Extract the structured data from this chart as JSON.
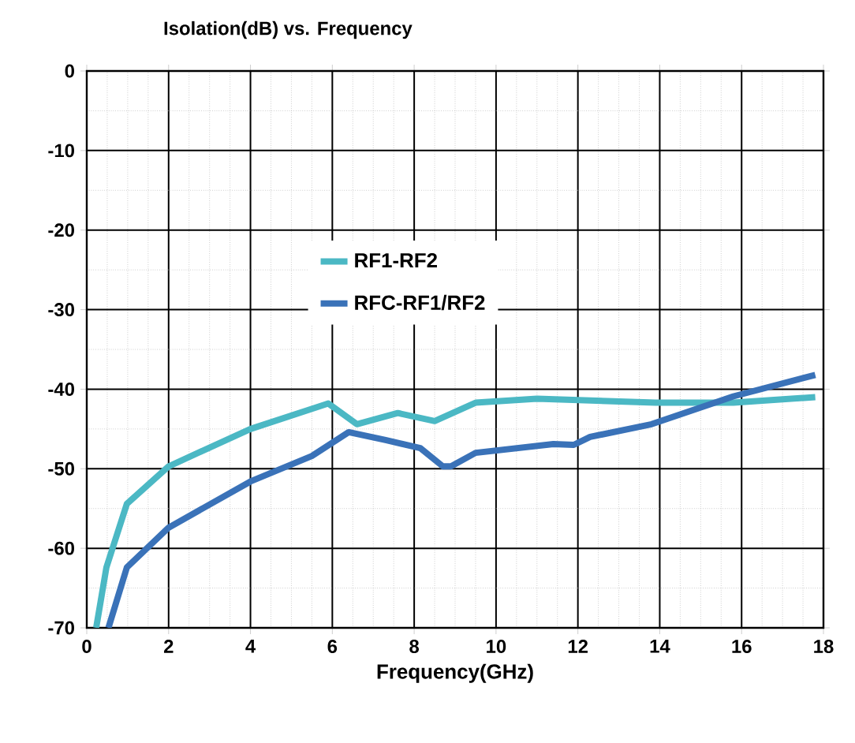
{
  "chart_data": {
    "type": "line",
    "title": "Isolation(dB)  vs. Frequency",
    "xlabel": "Frequency(GHz)",
    "xlim": [
      0,
      18
    ],
    "xticks": [
      0,
      2,
      4,
      6,
      8,
      10,
      12,
      14,
      16,
      18
    ],
    "ylim": [
      -70,
      0
    ],
    "yticks": [
      -70,
      -60,
      -50,
      -40,
      -30,
      -20,
      -10,
      0
    ],
    "grid": true,
    "legend": "center",
    "marker": "none",
    "line_style": "solid",
    "series": [
      {
        "name": "RF1-RF2",
        "color": "#4bb8c4",
        "x": [
          0.23,
          0.48,
          0.98,
          2.0,
          4.0,
          5.9,
          6.6,
          7.6,
          8.5,
          9.5,
          11.0,
          13.9,
          15.8,
          17.8
        ],
        "values": [
          -70,
          -62.4,
          -54.4,
          -49.7,
          -45,
          -41.8,
          -44.4,
          -43,
          -44,
          -41.7,
          -41.2,
          -41.7,
          -41.7,
          -41
        ]
      },
      {
        "name": "RFC-RF1/RF2",
        "color": "#3a72b8",
        "x": [
          0.53,
          0.98,
          2.0,
          4.0,
          5.5,
          6.4,
          7.3,
          8.15,
          8.7,
          8.9,
          9.5,
          11.4,
          11.9,
          12.3,
          13.8,
          15.8,
          17.8
        ],
        "values": [
          -70,
          -62.4,
          -57.4,
          -51.6,
          -48.4,
          -45.4,
          -46.4,
          -47.4,
          -49.7,
          -49.7,
          -48,
          -46.9,
          -47,
          -46,
          -44.4,
          -40.9,
          -38.2
        ]
      }
    ]
  }
}
